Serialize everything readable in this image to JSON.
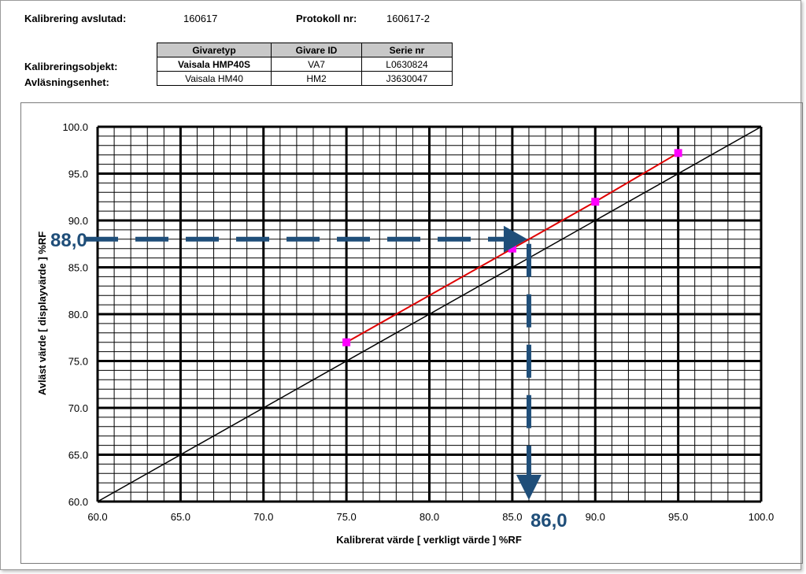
{
  "header": {
    "cal_done_label": "Kalibrering avslutad:",
    "cal_done_value": "160617",
    "protocol_label": "Protokoll nr:",
    "protocol_value": "160617-2",
    "row1_label": "Kalibreringsobjekt:",
    "row2_label": "Avläsningsenhet:"
  },
  "table": {
    "headers": [
      "Givaretyp",
      "Givare ID",
      "Serie nr"
    ],
    "rows": [
      [
        "Vaisala HMP40S",
        "VA7",
        "L0630824"
      ],
      [
        "Vaisala HM40",
        "HM2",
        "J3630047"
      ]
    ]
  },
  "chart_data": {
    "type": "line",
    "xlabel": "Kalibrerat värde   [ verkligt värde ] %RF",
    "ylabel": "Avläst värde [ displayvärde ] %RF",
    "xlim": [
      60,
      100
    ],
    "ylim": [
      60,
      100
    ],
    "x_ticks": [
      "60.0",
      "65.0",
      "70.0",
      "75.0",
      "80.0",
      "85.0",
      "90.0",
      "95.0",
      "100.0"
    ],
    "y_ticks": [
      "60.0",
      "65.0",
      "70.0",
      "75.0",
      "80.0",
      "85.0",
      "90.0",
      "95.0",
      "100.0"
    ],
    "grid": true,
    "series": [
      {
        "x": [
          75,
          85,
          90,
          95
        ],
        "y": [
          77.0,
          87.0,
          92.0,
          97.2
        ],
        "color": "#e00000",
        "marker_color": "#ff00ff"
      },
      {
        "x": [
          60,
          100
        ],
        "y": [
          60,
          100
        ],
        "color": "#000000"
      }
    ],
    "annotations": {
      "y_value": "88,0",
      "x_value": "86,0",
      "y": 88.0,
      "x": 86.0,
      "color": "#1f4e79"
    }
  }
}
